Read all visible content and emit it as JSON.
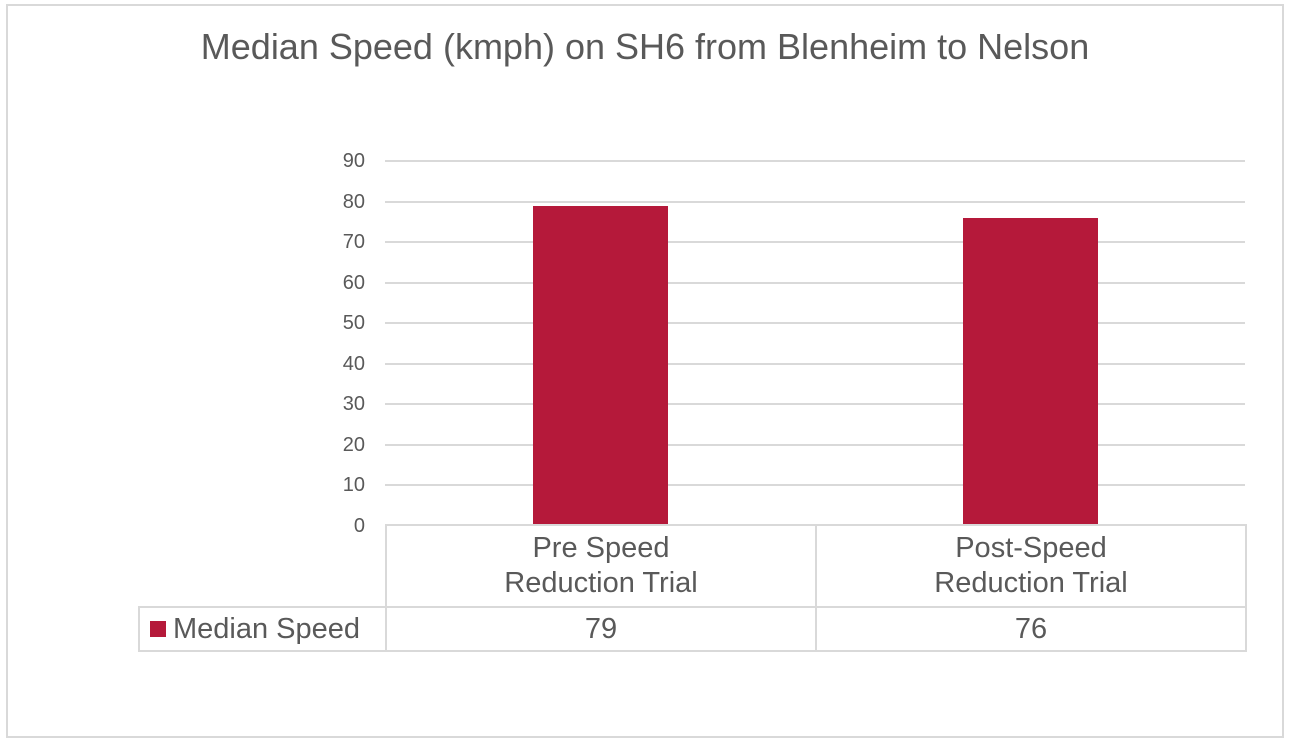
{
  "chart_data": {
    "type": "bar",
    "title": "Median Speed (kmph) on SH6 from Blenheim to Nelson",
    "categories": [
      "Pre Speed Reduction Trial",
      "Post-Speed Reduction Trial"
    ],
    "category_lines": [
      [
        "Pre Speed",
        "Reduction Trial"
      ],
      [
        "Post-Speed",
        "Reduction Trial"
      ]
    ],
    "series": [
      {
        "name": "Median Speed",
        "values": [
          79,
          76
        ],
        "color": "#B5193A"
      }
    ],
    "xlabel": "",
    "ylabel": "",
    "ylim": [
      0,
      90
    ],
    "yticks": [
      0,
      10,
      20,
      30,
      40,
      50,
      60,
      70,
      80,
      90
    ],
    "grid": true,
    "legend_position": "data-table",
    "data_table": {
      "row_label": "Median Speed",
      "values": [
        "79",
        "76"
      ]
    }
  },
  "colors": {
    "bar": "#B5193A",
    "text": "#595959",
    "grid": "#d9d9d9"
  }
}
